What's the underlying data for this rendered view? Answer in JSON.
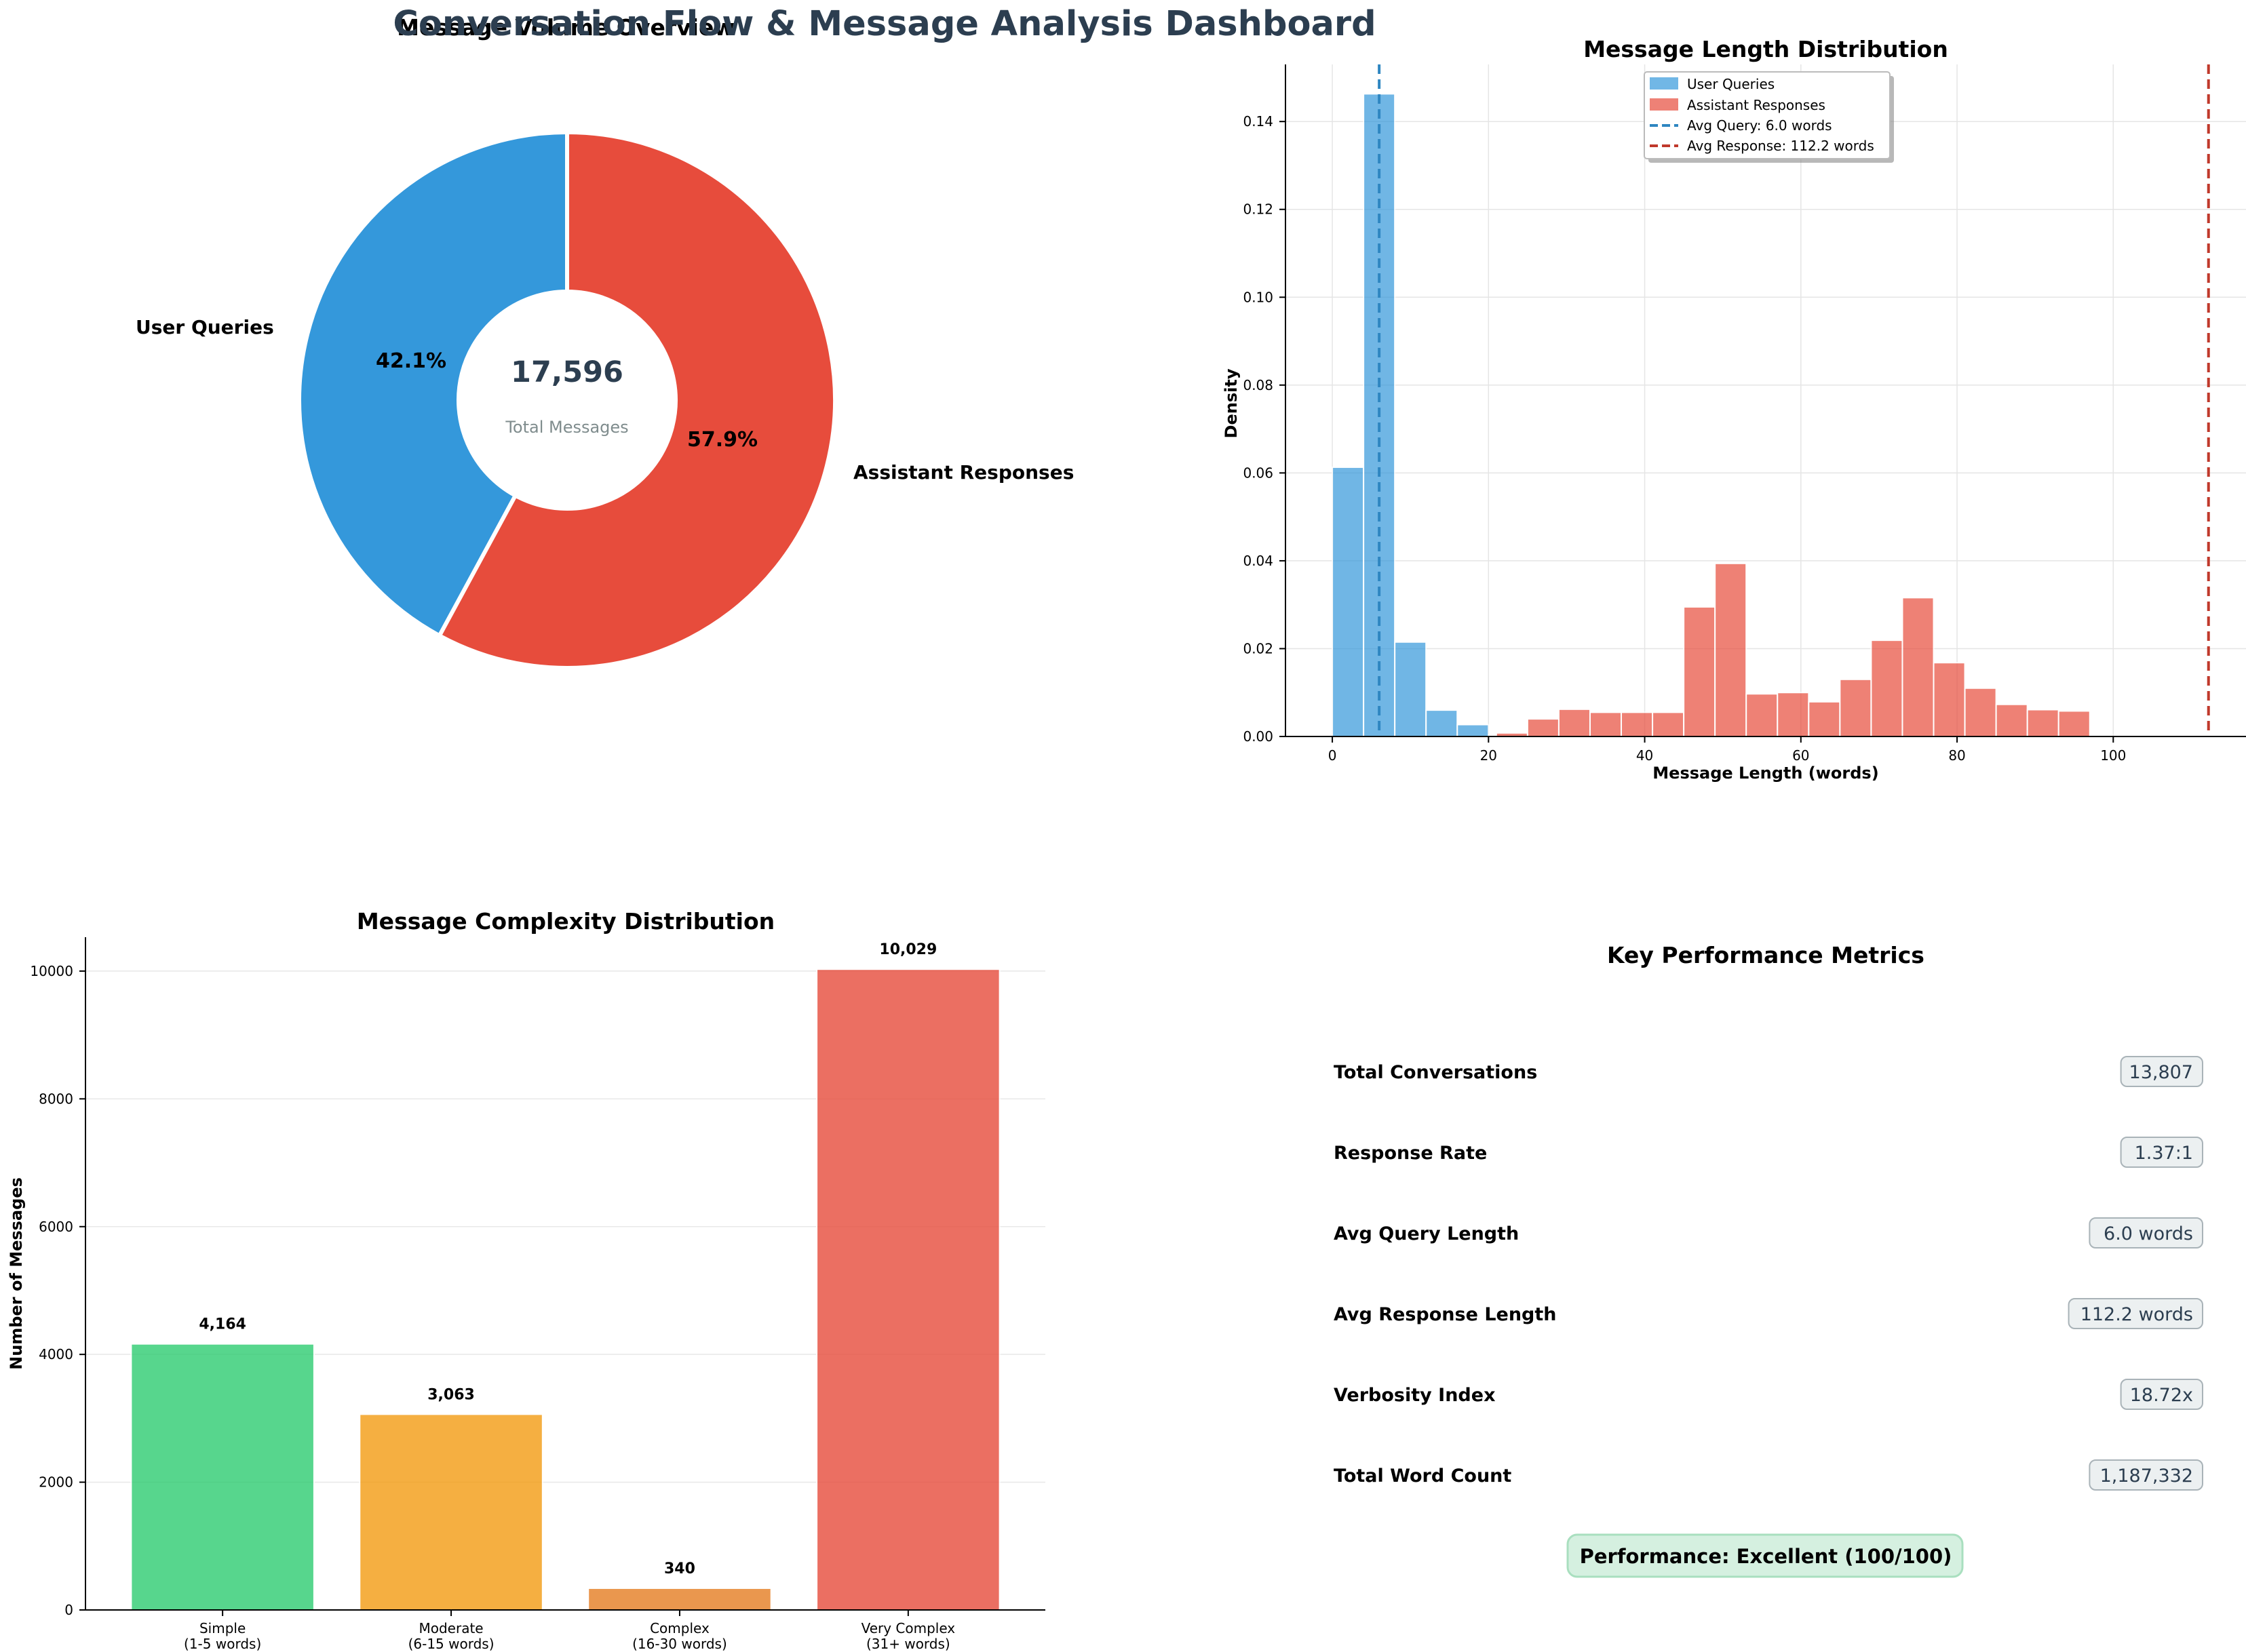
{
  "page_title": "Conversation Flow & Message Analysis Dashboard",
  "colors": {
    "title": "#2c3e50",
    "user": "#3498db",
    "assistant": "#e74c3c",
    "complexity": [
      "#2ecc71",
      "#f39c12",
      "#e67e22",
      "#e74c3c"
    ],
    "avg_query_line": "#2e86c1",
    "avg_response_line": "#c0392b",
    "kpi_box": "#ecf0f1",
    "perf_box": "#d5f0e0"
  },
  "chart_data": [
    {
      "type": "pie",
      "title": "Message Volume Overview",
      "labels": [
        "User Queries",
        "Assistant Responses"
      ],
      "values": [
        7408,
        10188
      ],
      "percent_labels": [
        "42.1%",
        "57.9%"
      ],
      "center_value": "17,596",
      "center_label": "Total Messages",
      "donut": true
    },
    {
      "type": "bar",
      "subtype": "histogram",
      "title": "Message Length Distribution",
      "xlabel": "Message Length (words)",
      "ylabel": "Density",
      "xlim": [
        -6,
        117
      ],
      "ylim": [
        0,
        0.153
      ],
      "xticks": [
        0,
        20,
        40,
        60,
        80,
        100
      ],
      "yticks": [
        0.0,
        0.02,
        0.04,
        0.06,
        0.08,
        0.1,
        0.12,
        0.14
      ],
      "grid": true,
      "legend_position": "top-center",
      "series": [
        {
          "name": "User Queries",
          "bin_edges": [
            0,
            4,
            8,
            12,
            16,
            20,
            24
          ],
          "values": [
            0.0613,
            0.1463,
            0.0215,
            0.006,
            0.0027,
            0.0003
          ]
        },
        {
          "name": "Assistant Responses",
          "bin_edges": [
            21,
            25,
            29,
            33,
            37,
            41,
            45,
            49,
            53,
            57,
            61,
            65,
            69,
            73,
            77,
            81,
            85,
            89,
            93,
            97,
            101
          ],
          "values": [
            0.0008,
            0.004,
            0.0062,
            0.0055,
            0.0055,
            0.0055,
            0.0295,
            0.0394,
            0.0097,
            0.01,
            0.0079,
            0.013,
            0.0219,
            0.0316,
            0.0168,
            0.011,
            0.0073,
            0.0061,
            0.0058,
            0.0
          ]
        }
      ],
      "reference_lines": [
        {
          "name": "Avg Query: 6.0 words",
          "x": 6.0
        },
        {
          "name": "Avg Response: 112.2 words",
          "x": 112.2
        }
      ]
    },
    {
      "type": "bar",
      "title": "Message Complexity Distribution",
      "xlabel": "",
      "ylabel": "Number of Messages",
      "categories": [
        [
          "Simple",
          "(1-5 words)"
        ],
        [
          "Moderate",
          "(6-15 words)"
        ],
        [
          "Complex",
          "(16-30 words)"
        ],
        [
          "Very Complex",
          "(31+ words)"
        ]
      ],
      "values": [
        4164,
        3063,
        340,
        10029
      ],
      "value_labels": [
        "4,164",
        "3,063",
        "340",
        "10,029"
      ],
      "ylim": [
        0,
        10530
      ],
      "yticks": [
        0,
        2000,
        4000,
        6000,
        8000,
        10000
      ],
      "grid": true
    }
  ],
  "kpi_panel": {
    "title": "Key Performance Metrics",
    "metrics": [
      {
        "label": "Total Conversations",
        "value": "13,807"
      },
      {
        "label": "Response Rate",
        "value": "1.37:1"
      },
      {
        "label": "Avg Query Length",
        "value": "6.0 words"
      },
      {
        "label": "Avg Response Length",
        "value": "112.2 words"
      },
      {
        "label": "Verbosity Index",
        "value": "18.72x"
      },
      {
        "label": "Total Word Count",
        "value": "1,187,332"
      }
    ],
    "performance": "Performance: Excellent (100/100)"
  }
}
